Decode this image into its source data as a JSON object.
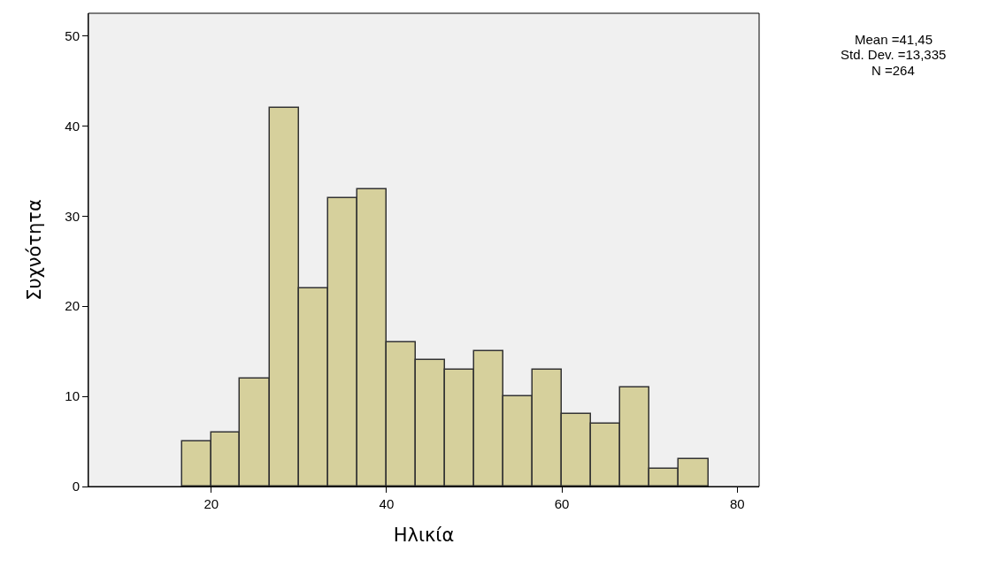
{
  "chart_data": {
    "type": "histogram",
    "xlabel": "Ηλικία",
    "ylabel": "Συχνότητα",
    "bins": [
      16.7,
      20,
      23.3,
      26.7,
      30,
      33.3,
      36.7,
      40,
      43.3,
      46.7,
      50,
      53.3,
      56.7,
      60,
      63.3,
      66.7,
      70,
      73.3,
      76.7
    ],
    "values": [
      5,
      6,
      12,
      42,
      22,
      32,
      33,
      16,
      14,
      13,
      15,
      10,
      13,
      8,
      7,
      11,
      2,
      3
    ],
    "color": "#d6d09c",
    "xlim": [
      6,
      82.5
    ],
    "xticks": [
      20,
      40,
      60,
      80
    ],
    "ylim": [
      0,
      52.5
    ],
    "yticks": [
      0,
      10,
      20,
      30,
      40,
      50
    ],
    "grid": false,
    "legend": false,
    "annotations": [
      "Mean =41,45",
      "Std. Dev. =13,335",
      "N =264"
    ]
  }
}
